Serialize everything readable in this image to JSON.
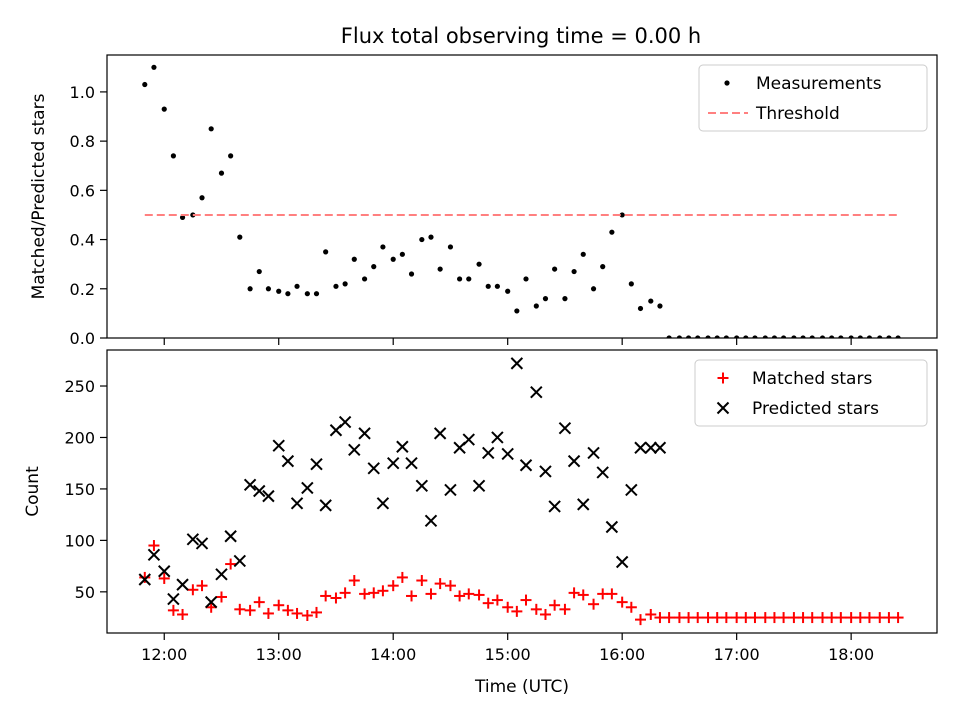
{
  "title": "Flux total observing time = 0.00 h",
  "chart_data": [
    {
      "type": "scatter",
      "ylabel": "Matched/Predicted stars",
      "xlim": [
        11.5,
        18.75
      ],
      "ylim": [
        0,
        1.15
      ],
      "yticks": [
        0.0,
        0.2,
        0.4,
        0.6,
        0.8,
        1.0
      ],
      "xticks": [
        12,
        13,
        14,
        15,
        16,
        17,
        18
      ],
      "legend": "top-right",
      "series": [
        {
          "name": "Measurements",
          "color": "#000000",
          "x": [
            11.83,
            11.91,
            12.0,
            12.08,
            12.16,
            12.25,
            12.33,
            12.41,
            12.5,
            12.58,
            12.66,
            12.75,
            12.83,
            12.91,
            13.0,
            13.08,
            13.16,
            13.25,
            13.33,
            13.41,
            13.5,
            13.58,
            13.66,
            13.75,
            13.83,
            13.91,
            14.0,
            14.08,
            14.16,
            14.25,
            14.33,
            14.41,
            14.5,
            14.58,
            14.66,
            14.75,
            14.83,
            14.91,
            15.0,
            15.08,
            15.16,
            15.25,
            15.33,
            15.41,
            15.5,
            15.58,
            15.66,
            15.75,
            15.83,
            15.91,
            16.0,
            16.08,
            16.16,
            16.25,
            16.33,
            16.41,
            16.5,
            16.58,
            16.66,
            16.75,
            16.83,
            16.91,
            17.0,
            17.08,
            17.16,
            17.25,
            17.33,
            17.41,
            17.5,
            17.58,
            17.66,
            17.75,
            17.83,
            17.91,
            18.0,
            18.08,
            18.16,
            18.25,
            18.33,
            18.41
          ],
          "y": [
            1.03,
            1.1,
            0.93,
            0.74,
            0.49,
            0.5,
            0.57,
            0.85,
            0.67,
            0.74,
            0.41,
            0.2,
            0.27,
            0.2,
            0.19,
            0.18,
            0.21,
            0.18,
            0.18,
            0.35,
            0.21,
            0.22,
            0.32,
            0.24,
            0.29,
            0.37,
            0.32,
            0.34,
            0.26,
            0.4,
            0.41,
            0.28,
            0.37,
            0.24,
            0.24,
            0.3,
            0.21,
            0.21,
            0.19,
            0.11,
            0.24,
            0.13,
            0.16,
            0.28,
            0.16,
            0.27,
            0.34,
            0.2,
            0.29,
            0.43,
            0.5,
            0.22,
            0.12,
            0.15,
            0.13,
            0,
            0,
            0,
            0,
            0,
            0,
            0,
            0,
            0,
            0,
            0,
            0,
            0,
            0,
            0,
            0,
            0,
            0,
            0,
            0,
            0,
            0,
            0,
            0,
            0
          ]
        },
        {
          "name": "Threshold",
          "color": "#ff8080",
          "style": "dashed",
          "x": [
            11.83,
            18.42
          ],
          "y": [
            0.5,
            0.5
          ]
        }
      ]
    },
    {
      "type": "scatter",
      "xlabel": "Time (UTC)",
      "ylabel": "Count",
      "xlim": [
        11.5,
        18.75
      ],
      "ylim": [
        10,
        285
      ],
      "yticks": [
        50,
        100,
        150,
        200,
        250
      ],
      "xticks": [
        12,
        13,
        14,
        15,
        16,
        17,
        18
      ],
      "xticklabels": [
        "12:00",
        "13:00",
        "14:00",
        "15:00",
        "16:00",
        "17:00",
        "18:00"
      ],
      "legend": "top-right",
      "series": [
        {
          "name": "Matched stars",
          "color": "#ff0000",
          "marker": "plus",
          "x": [
            11.83,
            11.91,
            12.0,
            12.08,
            12.16,
            12.25,
            12.33,
            12.41,
            12.5,
            12.58,
            12.66,
            12.75,
            12.83,
            12.91,
            13.0,
            13.08,
            13.16,
            13.25,
            13.33,
            13.41,
            13.5,
            13.58,
            13.66,
            13.75,
            13.83,
            13.91,
            14.0,
            14.08,
            14.16,
            14.25,
            14.33,
            14.41,
            14.5,
            14.58,
            14.66,
            14.75,
            14.83,
            14.91,
            15.0,
            15.08,
            15.16,
            15.25,
            15.33,
            15.41,
            15.5,
            15.58,
            15.66,
            15.75,
            15.83,
            15.91,
            16.0,
            16.08,
            16.16,
            16.25,
            16.33,
            16.41,
            16.5,
            16.58,
            16.66,
            16.75,
            16.83,
            16.91,
            17.0,
            17.08,
            17.16,
            17.25,
            17.33,
            17.41,
            17.5,
            17.58,
            17.66,
            17.75,
            17.83,
            17.91,
            18.0,
            18.08,
            18.16,
            18.25,
            18.33,
            18.41
          ],
          "y": [
            64,
            95,
            63,
            32,
            28,
            52,
            56,
            35,
            45,
            77,
            33,
            32,
            40,
            29,
            37,
            32,
            29,
            27,
            30,
            46,
            44,
            49,
            61,
            48,
            49,
            51,
            56,
            64,
            46,
            61,
            48,
            58,
            56,
            46,
            48,
            47,
            39,
            42,
            35,
            31,
            42,
            33,
            28,
            37,
            33,
            49,
            47,
            38,
            48,
            48,
            40,
            35,
            23,
            28,
            25,
            25,
            25,
            25,
            25,
            25,
            25,
            25,
            25,
            25,
            25,
            25,
            25,
            25,
            25,
            25,
            25,
            25,
            25,
            25,
            25,
            25,
            25,
            25,
            25,
            25
          ]
        },
        {
          "name": "Predicted stars",
          "color": "#000000",
          "marker": "x",
          "x": [
            11.83,
            11.91,
            12.0,
            12.08,
            12.16,
            12.25,
            12.33,
            12.41,
            12.5,
            12.58,
            12.66,
            12.75,
            12.83,
            12.91,
            13.0,
            13.08,
            13.16,
            13.25,
            13.33,
            13.41,
            13.5,
            13.58,
            13.66,
            13.75,
            13.83,
            13.91,
            14.0,
            14.08,
            14.16,
            14.25,
            14.33,
            14.41,
            14.5,
            14.58,
            14.66,
            14.75,
            14.83,
            14.91,
            15.0,
            15.08,
            15.16,
            15.25,
            15.33,
            15.41,
            15.5,
            15.58,
            15.66,
            15.75,
            15.83,
            15.91,
            16.0,
            16.08,
            16.16,
            16.25,
            16.33
          ],
          "y": [
            62,
            86,
            70,
            43,
            57,
            101,
            97,
            40,
            67,
            104,
            80,
            154,
            148,
            143,
            192,
            177,
            136,
            151,
            174,
            134,
            207,
            215,
            188,
            204,
            170,
            136,
            175,
            191,
            175,
            153,
            119,
            204,
            149,
            190,
            198,
            153,
            185,
            200,
            184,
            272,
            173,
            244,
            167,
            133,
            209,
            177,
            135,
            185,
            166,
            113,
            79,
            149,
            190,
            190,
            190
          ]
        }
      ]
    }
  ]
}
